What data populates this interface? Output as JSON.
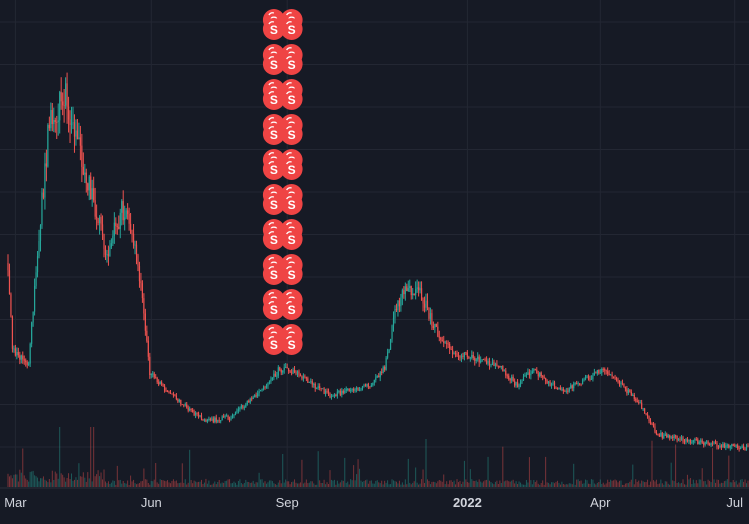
{
  "chart_data": {
    "type": "candlestick",
    "title": "",
    "xlabel": "",
    "ylabel": "",
    "x_range": [
      "2021-02-24",
      "2022-07-10"
    ],
    "grid": true,
    "x_ticks": [
      {
        "date": "2021-03-01",
        "label": "Mar",
        "bold": false
      },
      {
        "date": "2021-06-01",
        "label": "Jun",
        "bold": false
      },
      {
        "date": "2021-09-01",
        "label": "Sep",
        "bold": false
      },
      {
        "date": "2022-01-01",
        "label": "2022",
        "bold": true
      },
      {
        "date": "2022-04-01",
        "label": "Apr",
        "bold": false
      },
      {
        "date": "2022-07-01",
        "label": "Jul",
        "bold": false
      }
    ],
    "price_trend": [
      {
        "date": "2021-02-24",
        "price": 0.3
      },
      {
        "date": "2021-02-27",
        "price": 0.1
      },
      {
        "date": "2021-03-10",
        "price": 0.07
      },
      {
        "date": "2021-03-16",
        "price": 0.33
      },
      {
        "date": "2021-03-24",
        "price": 0.62
      },
      {
        "date": "2021-04-04",
        "price": 0.68
      },
      {
        "date": "2021-04-12",
        "price": 0.58
      },
      {
        "date": "2021-04-22",
        "price": 0.45
      },
      {
        "date": "2021-05-02",
        "price": 0.32
      },
      {
        "date": "2021-05-12",
        "price": 0.42
      },
      {
        "date": "2021-05-19",
        "price": 0.37
      },
      {
        "date": "2021-05-25",
        "price": 0.24
      },
      {
        "date": "2021-05-31",
        "price": 0.05
      },
      {
        "date": "2021-06-08",
        "price": 0.02
      },
      {
        "date": "2021-06-22",
        "price": -0.02
      },
      {
        "date": "2021-07-08",
        "price": -0.06
      },
      {
        "date": "2021-07-25",
        "price": -0.05
      },
      {
        "date": "2021-08-07",
        "price": -0.01
      },
      {
        "date": "2021-08-20",
        "price": 0.03
      },
      {
        "date": "2021-08-27",
        "price": 0.06
      },
      {
        "date": "2021-09-08",
        "price": 0.05
      },
      {
        "date": "2021-09-20",
        "price": 0.02
      },
      {
        "date": "2021-09-30",
        "price": 0.0
      },
      {
        "date": "2021-10-12",
        "price": 0.01
      },
      {
        "date": "2021-10-26",
        "price": 0.02
      },
      {
        "date": "2021-11-06",
        "price": 0.06
      },
      {
        "date": "2021-11-14",
        "price": 0.2
      },
      {
        "date": "2021-11-21",
        "price": 0.24
      },
      {
        "date": "2021-12-01",
        "price": 0.23
      },
      {
        "date": "2021-12-10",
        "price": 0.15
      },
      {
        "date": "2021-12-22",
        "price": 0.1
      },
      {
        "date": "2022-01-08",
        "price": 0.08
      },
      {
        "date": "2022-01-22",
        "price": 0.07
      },
      {
        "date": "2022-02-04",
        "price": 0.02
      },
      {
        "date": "2022-02-14",
        "price": 0.06
      },
      {
        "date": "2022-02-24",
        "price": 0.03
      },
      {
        "date": "2022-03-08",
        "price": 0.01
      },
      {
        "date": "2022-03-20",
        "price": 0.03
      },
      {
        "date": "2022-04-04",
        "price": 0.06
      },
      {
        "date": "2022-04-16",
        "price": 0.02
      },
      {
        "date": "2022-04-28",
        "price": -0.02
      },
      {
        "date": "2022-05-09",
        "price": -0.09
      },
      {
        "date": "2022-05-26",
        "price": -0.1
      },
      {
        "date": "2022-06-12",
        "price": -0.11
      },
      {
        "date": "2022-07-10",
        "price": -0.12
      }
    ],
    "markers": {
      "label": "S",
      "color": "#ef4444",
      "columns": [
        {
          "date": "2021-08-23",
          "count": 10
        },
        {
          "date": "2021-09-04",
          "count": 10
        }
      ]
    },
    "colors": {
      "background": "#161a25",
      "grid": "#232733",
      "up": "#26a69a",
      "down": "#ef5350",
      "tick_text": "#d1d4dc"
    }
  }
}
